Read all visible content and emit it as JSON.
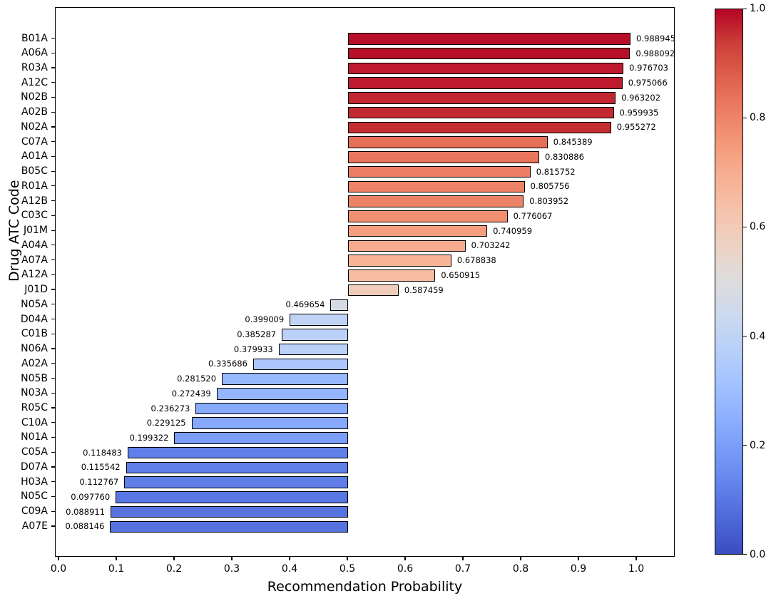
{
  "chart_data": {
    "type": "bar",
    "orientation": "horizontal",
    "title": "",
    "xlabel": "Recommendation Probability",
    "ylabel": "Drug ATC Code",
    "bar_anchor": 0.5,
    "xlim": [
      0.0,
      1.07
    ],
    "x_ticks": [
      "0.0",
      "0.1",
      "0.2",
      "0.3",
      "0.4",
      "0.5",
      "0.6",
      "0.7",
      "0.8",
      "0.9",
      "1.0"
    ],
    "categories": [
      "B01A",
      "A06A",
      "R03A",
      "A12C",
      "N02B",
      "A02B",
      "N02A",
      "C07A",
      "A01A",
      "B05C",
      "R01A",
      "A12B",
      "C03C",
      "J01M",
      "A04A",
      "A07A",
      "A12A",
      "J01D",
      "N05A",
      "D04A",
      "C01B",
      "N06A",
      "A02A",
      "N05B",
      "N03A",
      "R05C",
      "C10A",
      "N01A",
      "C05A",
      "D07A",
      "H03A",
      "N05C",
      "C09A",
      "A07E"
    ],
    "values": [
      0.988945,
      0.988092,
      0.976703,
      0.975066,
      0.963202,
      0.959935,
      0.955272,
      0.845389,
      0.830886,
      0.815752,
      0.805756,
      0.803952,
      0.776067,
      0.740959,
      0.703242,
      0.678838,
      0.650915,
      0.587459,
      0.469654,
      0.399009,
      0.385287,
      0.379933,
      0.335686,
      0.28152,
      0.272439,
      0.236273,
      0.229125,
      0.199322,
      0.118483,
      0.115542,
      0.112767,
      0.09776,
      0.088911,
      0.088146
    ],
    "value_labels": [
      "0.988945",
      "0.988092",
      "0.976703",
      "0.975066",
      "0.963202",
      "0.959935",
      "0.955272",
      "0.845389",
      "0.830886",
      "0.815752",
      "0.805756",
      "0.803952",
      "0.776067",
      "0.740959",
      "0.703242",
      "0.678838",
      "0.650915",
      "0.587459",
      "0.469654",
      "0.399009",
      "0.385287",
      "0.379933",
      "0.335686",
      "0.281520",
      "0.272439",
      "0.236273",
      "0.229125",
      "0.199322",
      "0.118483",
      "0.115542",
      "0.112767",
      "0.097760",
      "0.088911",
      "0.088146"
    ],
    "bar_edge_color": "#000000",
    "colormap": {
      "name": "coolwarm",
      "anchors": [
        "#3b4cc0",
        "#4d68d7",
        "#6282ea",
        "#779af7",
        "#8db0fe",
        "#a3c2ff",
        "#b8d0f9",
        "#ccd9ee",
        "#dddddd",
        "#ecd3c5",
        "#f5c4ad",
        "#f7b194",
        "#f49a7b",
        "#ec7f63",
        "#de604d",
        "#cb3e38",
        "#b40426"
      ]
    },
    "colorbar": {
      "min": 0.0,
      "max": 1.0,
      "tick_labels": [
        "1.0",
        "0.8",
        "0.6",
        "0.4",
        "0.2",
        "0.0"
      ]
    }
  }
}
